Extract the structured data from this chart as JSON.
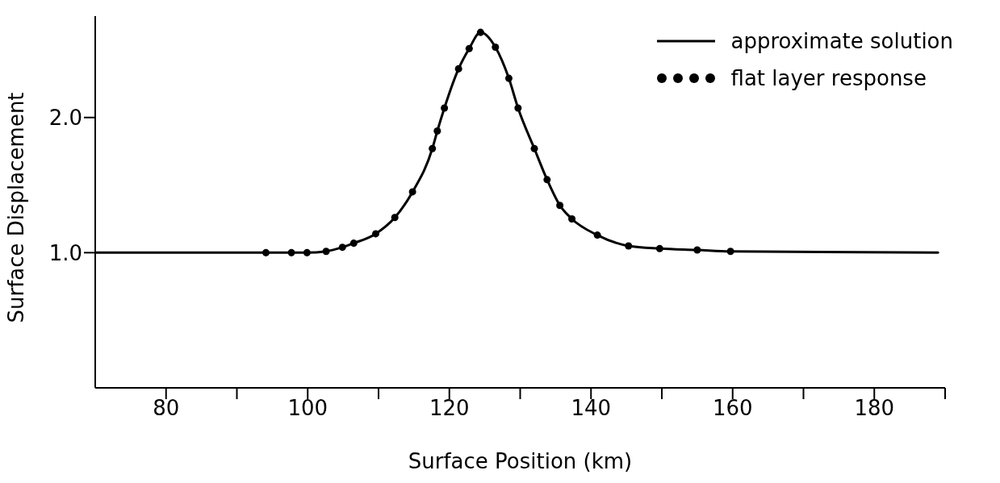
{
  "chart_data": {
    "type": "line",
    "xlabel": "Surface Position (km)",
    "ylabel": "Surface Displacement",
    "xlim": [
      70,
      190
    ],
    "ylim": [
      0,
      2.75
    ],
    "xticks": [
      80,
      {
        "value": 90,
        "label": null
      },
      100,
      {
        "value": 110,
        "label": null
      },
      120,
      {
        "value": 130,
        "label": null
      },
      140,
      {
        "value": 150,
        "label": null
      },
      160,
      {
        "value": 170,
        "label": null
      },
      180,
      {
        "value": 190,
        "label": null
      }
    ],
    "yticks": [
      {
        "value": 1,
        "label": "1.0"
      },
      {
        "value": 2,
        "label": "2.0"
      }
    ],
    "grid": false,
    "legend": "top right",
    "series": [
      {
        "name": "approximate solution",
        "color": "#000000",
        "line_style": "solid",
        "marker": "none",
        "x": [
          70,
          94.1,
          97.7,
          99.9,
          102.6,
          104.9,
          106.5,
          109.6,
          112.3,
          114.8,
          117.6,
          118.3,
          119.3,
          121.3,
          122.8,
          124.4,
          126.5,
          128.4,
          129.7,
          132.0,
          133.8,
          135.6,
          137.3,
          140.9,
          145.3,
          149.7,
          155.0,
          159.7,
          189
        ],
        "values": [
          1.0,
          1.0,
          1.0,
          1.0,
          1.01,
          1.04,
          1.07,
          1.14,
          1.26,
          1.45,
          1.77,
          1.9,
          2.07,
          2.36,
          2.51,
          2.63,
          2.52,
          2.29,
          2.07,
          1.77,
          1.54,
          1.35,
          1.25,
          1.13,
          1.05,
          1.03,
          1.02,
          1.01,
          1.0
        ]
      },
      {
        "name": "flat layer response",
        "type": "scatter",
        "color": "#000000",
        "marker": "circle",
        "x": [
          94.1,
          97.7,
          99.9,
          102.6,
          104.9,
          106.5,
          109.6,
          112.3,
          114.8,
          117.6,
          118.3,
          119.3,
          121.3,
          122.8,
          124.4,
          126.5,
          128.4,
          129.7,
          132.0,
          133.8,
          135.6,
          137.3,
          140.9,
          145.3,
          149.7,
          155.0,
          159.7
        ],
        "values": [
          1.0,
          1.0,
          1.0,
          1.01,
          1.04,
          1.07,
          1.14,
          1.26,
          1.45,
          1.77,
          1.9,
          2.07,
          2.36,
          2.51,
          2.63,
          2.52,
          2.29,
          2.07,
          1.77,
          1.54,
          1.35,
          1.25,
          1.13,
          1.05,
          1.03,
          1.02,
          1.01
        ]
      }
    ]
  }
}
